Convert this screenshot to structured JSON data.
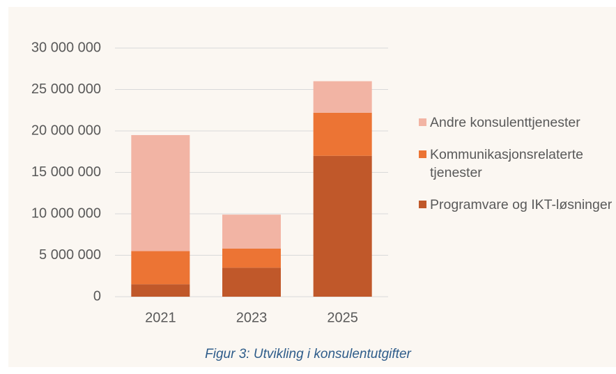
{
  "chart_data": {
    "type": "stacked_bar",
    "caption": "Figur 3: Utvikling i konsulentutgifter",
    "categories": [
      "2021",
      "2023",
      "2025"
    ],
    "series": [
      {
        "name": "Programvare og IKT-løsninger",
        "color": "#c0582a",
        "values": [
          1500000,
          3500000,
          17000000
        ]
      },
      {
        "name": "Kommunikasjonsrelaterte tjenester",
        "color": "#ec7434",
        "values": [
          4000000,
          2300000,
          5200000
        ]
      },
      {
        "name": "Andre konsulenttjenester",
        "color": "#f2b4a4",
        "values": [
          14000000,
          4100000,
          3800000
        ]
      }
    ],
    "ylim": [
      0,
      30000000
    ],
    "yticks": [
      0,
      {
        "value": 5000000,
        "label": "5 000 000"
      },
      {
        "value": 10000000,
        "label": "10 000 000"
      },
      {
        "value": 15000000,
        "label": "15 000 000"
      },
      {
        "value": 20000000,
        "label": "20 000 000"
      },
      {
        "value": 25000000,
        "label": "25 000 000"
      },
      {
        "value": 30000000,
        "label": "30 000 000"
      }
    ],
    "grid": true,
    "legend": "right"
  }
}
